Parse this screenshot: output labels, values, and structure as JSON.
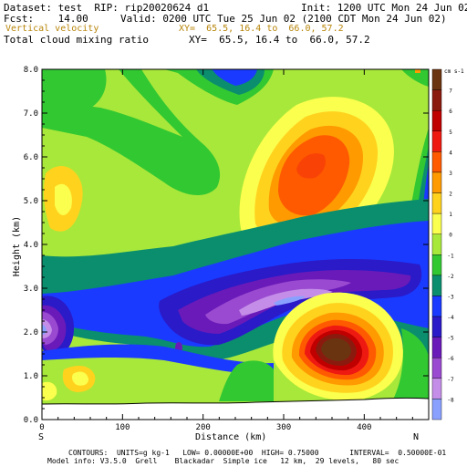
{
  "header": {
    "dataset": "Dataset: test  RIP: rip20020624 d1",
    "init": "Init: 1200 UTC Mon 24 Jun 02",
    "fcst": "Fcst:    14.00",
    "valid": "Valid: 0200 UTC Tue 25 Jun 02 (2100 CDT Mon 24 Jun 02)",
    "var1": "Vertical velocity",
    "var1_xy": "XY=  65.5, 16.4 to  66.0, 57.2",
    "var2": "Total cloud mixing ratio",
    "var2_xy": "XY=  65.5, 16.4 to  66.0, 57.2",
    "var1_color": "#b8860b"
  },
  "footer": {
    "line1": "CONTOURS:  UNITS=g kg-1   LOW= 0.00000E+00  HIGH= 0.75000       INTERVAL=  0.50000E-01",
    "line2": "Model info: V3.5.0  Grell    Blackadar  Simple ice   12 km,  29 levels,   80 sec"
  },
  "chart_data": {
    "type": "heatmap",
    "xlabel": "Distance (km)",
    "ylabel": "Height (km)",
    "xlim": [
      0,
      480
    ],
    "ylim": [
      0,
      8
    ],
    "xticks": [
      0,
      100,
      200,
      300,
      400
    ],
    "yticks": [
      "0.0",
      "1.0",
      "2.0",
      "3.0",
      "4.0",
      "5.0",
      "6.0",
      "7.0",
      "8.0"
    ],
    "left_endpoint": "S",
    "right_endpoint": "N",
    "colorbar": {
      "unit": "cm s-1",
      "levels": [
        "7",
        "6",
        "5",
        "4",
        "3",
        "2",
        "1",
        "0",
        "-1",
        "-2",
        "-3",
        "-4",
        "-5",
        "-6",
        "-7",
        "-8"
      ],
      "colors": [
        "#6b3410",
        "#8b1a0e",
        "#c00000",
        "#ee1a12",
        "#ff5a00",
        "#ff9a00",
        "#ffd21e",
        "#fbff4d",
        "#a8e83a",
        "#32c832",
        "#0a8e6e",
        "#1a3aff",
        "#2a1ac8",
        "#6a1ab8",
        "#9a4ad0",
        "#c48ee8",
        "#8aa0ff"
      ]
    },
    "regions": [
      {
        "name": "upper-updraft",
        "x": 310,
        "y": 5.8,
        "max": 5
      },
      {
        "name": "lower-updraft",
        "x": 390,
        "y": 1.5,
        "max": 7
      },
      {
        "name": "downdraft-band",
        "x": 260,
        "y": 2.6,
        "min": -7
      },
      {
        "name": "left-downdraft",
        "x": 10,
        "y": 2.2,
        "min": -7
      }
    ]
  }
}
